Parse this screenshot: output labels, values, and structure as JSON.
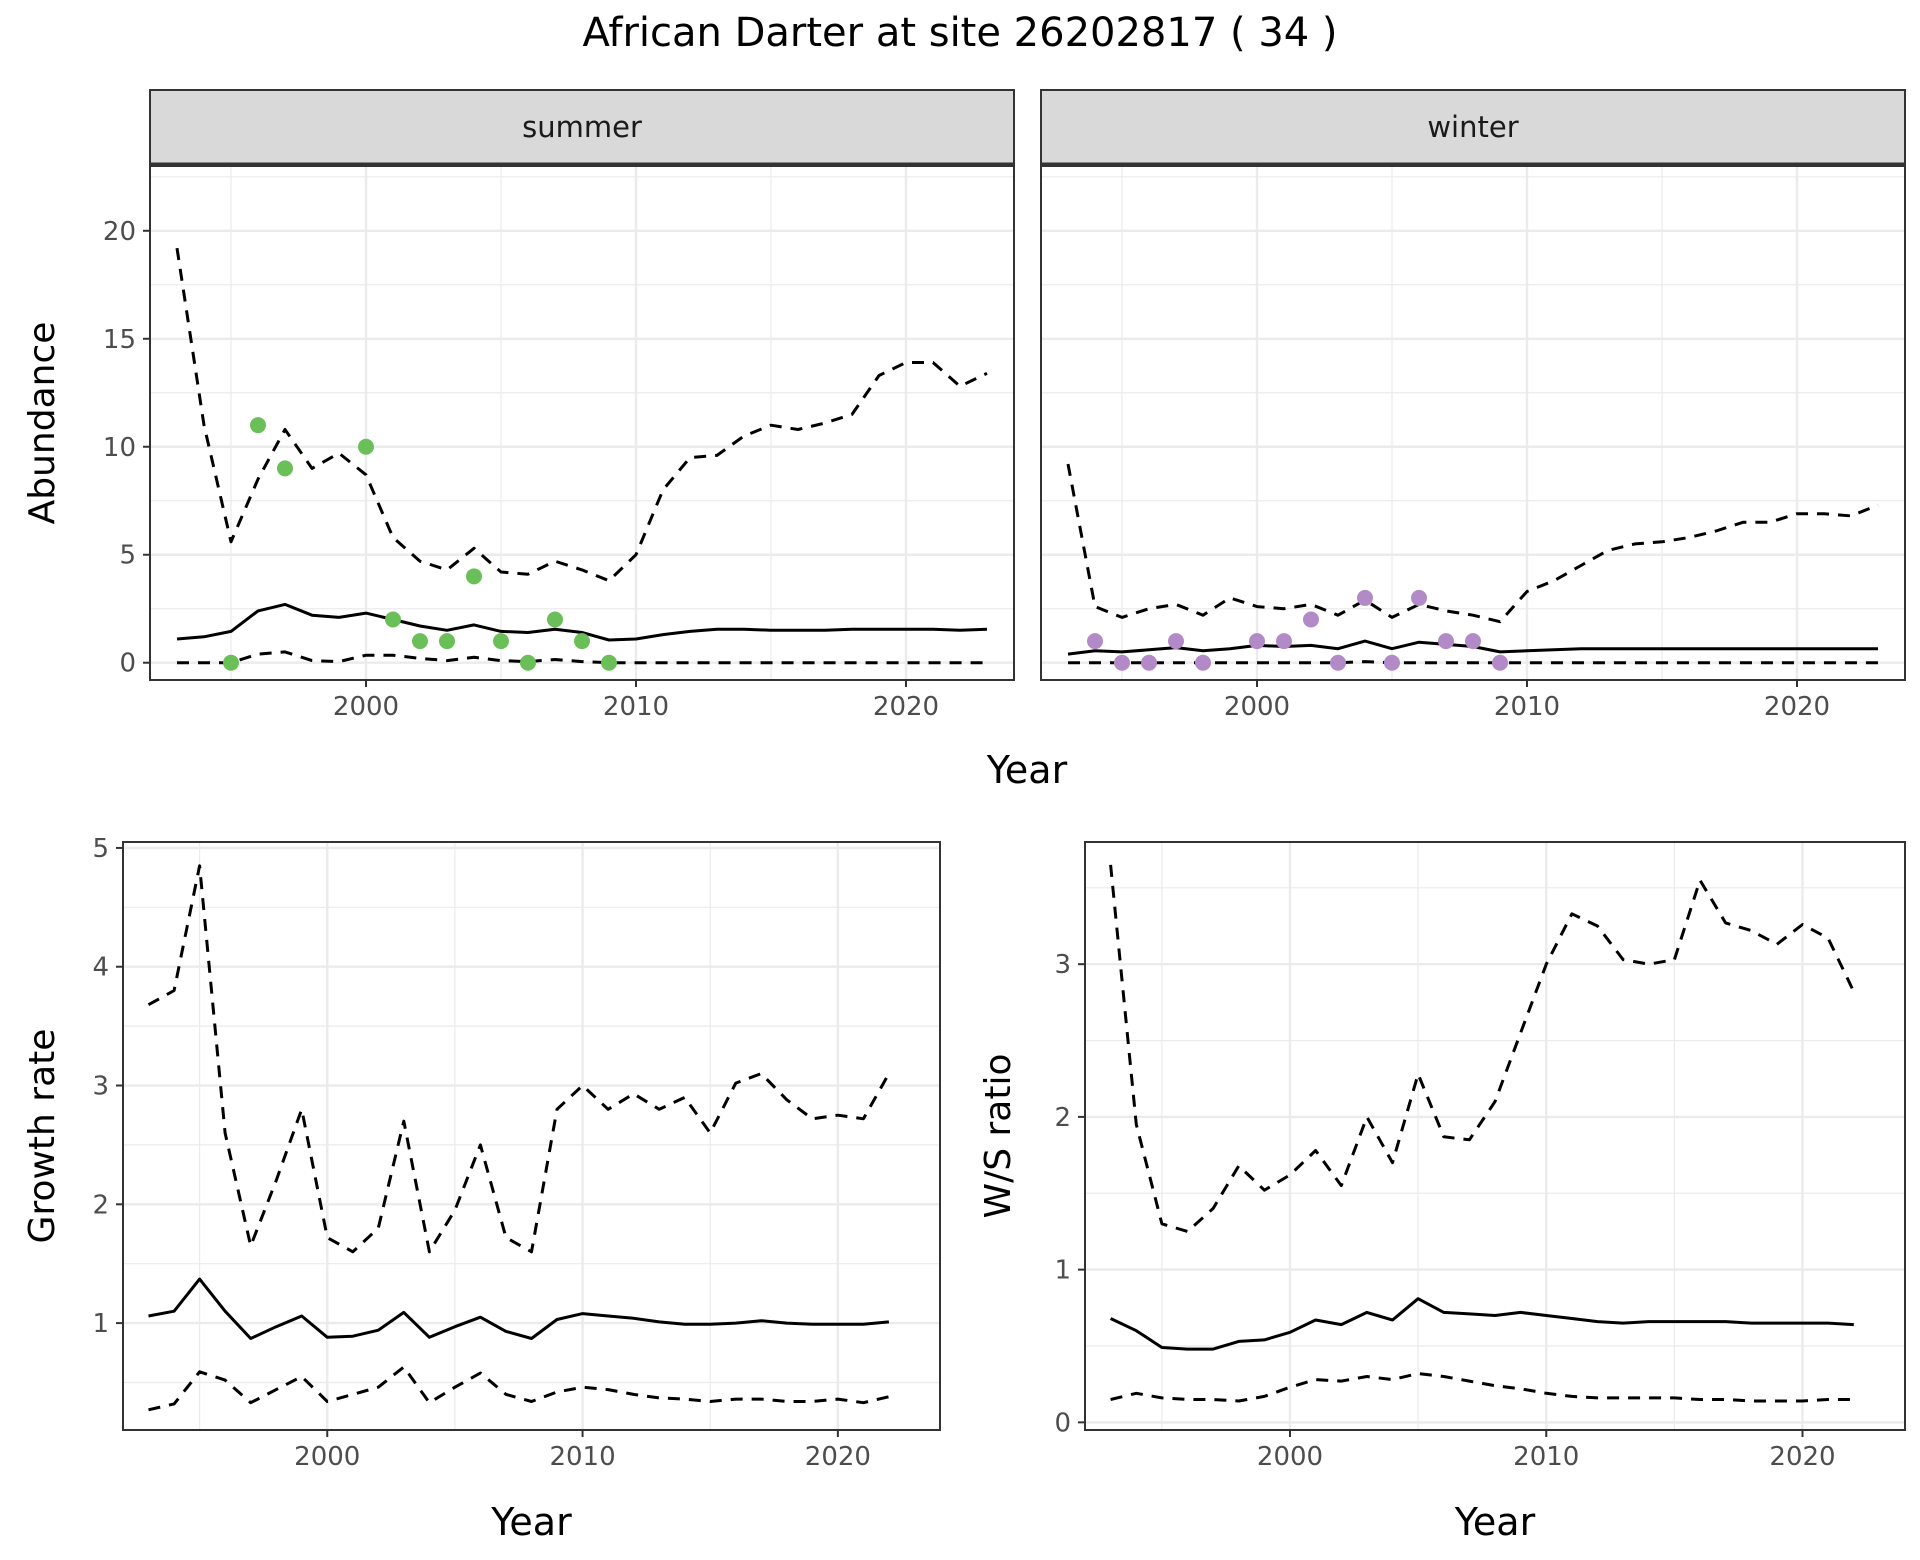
{
  "title": "African Darter at site 26202817 ( 34 )",
  "colors": {
    "summer_points": "#6abf59",
    "winter_points": "#b18ac7",
    "line": "#000000",
    "strip": "#d9d9d9",
    "grid": "#ebebeb"
  },
  "chart_data": [
    {
      "type": "line",
      "name": "abundance-summer",
      "facet": "summer",
      "xlabel": "Year",
      "ylabel": "Abundance",
      "xlim": [
        1992,
        2024
      ],
      "ylim": [
        -0.8,
        23
      ],
      "xticks": [
        2000,
        2010,
        2020
      ],
      "yticks": [
        0,
        5,
        10,
        15,
        20
      ],
      "grid": true,
      "series": [
        {
          "style": "solid",
          "x": [
            1993,
            1994,
            1995,
            1996,
            1997,
            1998,
            1999,
            2000,
            2001,
            2002,
            2003,
            2004,
            2005,
            2006,
            2007,
            2008,
            2009,
            2010,
            2011,
            2012,
            2013,
            2014,
            2015,
            2016,
            2017,
            2018,
            2019,
            2020,
            2021,
            2022,
            2023
          ],
          "y": [
            1.1,
            1.2,
            1.45,
            2.4,
            2.7,
            2.2,
            2.1,
            2.3,
            2.0,
            1.7,
            1.5,
            1.75,
            1.45,
            1.4,
            1.55,
            1.4,
            1.05,
            1.1,
            1.3,
            1.45,
            1.55,
            1.55,
            1.5,
            1.5,
            1.5,
            1.55,
            1.55,
            1.55,
            1.55,
            1.5,
            1.55
          ]
        },
        {
          "style": "dashed",
          "x": [
            1993,
            1994,
            1995,
            1996,
            1997,
            1998,
            1999,
            2000,
            2001,
            2002,
            2003,
            2004,
            2005,
            2006,
            2007,
            2008,
            2009,
            2010,
            2011,
            2012,
            2013,
            2014,
            2015,
            2016,
            2017,
            2018,
            2019,
            2020,
            2021,
            2022,
            2023
          ],
          "y": [
            19.2,
            11.0,
            5.6,
            8.5,
            10.8,
            9.0,
            9.7,
            8.7,
            5.8,
            4.7,
            4.3,
            5.3,
            4.2,
            4.1,
            4.7,
            4.3,
            3.8,
            5.0,
            8.0,
            9.5,
            9.6,
            10.5,
            11.0,
            10.8,
            11.1,
            11.5,
            13.3,
            13.9,
            13.9,
            12.8,
            13.4
          ]
        },
        {
          "style": "dashed",
          "x": [
            1993,
            1994,
            1995,
            1996,
            1997,
            1998,
            1999,
            2000,
            2001,
            2002,
            2003,
            2004,
            2005,
            2006,
            2007,
            2008,
            2009,
            2010,
            2011,
            2012,
            2013,
            2014,
            2015,
            2016,
            2017,
            2018,
            2019,
            2020,
            2021,
            2022,
            2023
          ],
          "y": [
            0,
            0,
            0,
            0.4,
            0.5,
            0.1,
            0.05,
            0.35,
            0.35,
            0.2,
            0.1,
            0.25,
            0.1,
            0.05,
            0.15,
            0.05,
            0,
            0,
            0,
            0,
            0,
            0,
            0,
            0,
            0,
            0,
            0,
            0,
            0,
            0,
            0
          ]
        }
      ],
      "points": {
        "x": [
          1995,
          1996,
          1997,
          2000,
          2001,
          2002,
          2003,
          2004,
          2005,
          2006,
          2007,
          2008,
          2009
        ],
        "y": [
          0,
          11,
          9,
          10,
          2,
          1,
          1,
          4,
          1,
          0,
          2,
          1,
          0
        ]
      }
    },
    {
      "type": "line",
      "name": "abundance-winter",
      "facet": "winter",
      "xlabel": "Year",
      "xlim": [
        1992,
        2024
      ],
      "ylim": [
        -0.8,
        23
      ],
      "xticks": [
        2000,
        2010,
        2020
      ],
      "yticks": [
        0,
        5,
        10,
        15,
        20
      ],
      "grid": true,
      "series": [
        {
          "style": "solid",
          "x": [
            1993,
            1994,
            1995,
            1996,
            1997,
            1998,
            1999,
            2000,
            2001,
            2002,
            2003,
            2004,
            2005,
            2006,
            2007,
            2008,
            2009,
            2010,
            2011,
            2012,
            2013,
            2014,
            2015,
            2016,
            2017,
            2018,
            2019,
            2020,
            2021,
            2022,
            2023
          ],
          "y": [
            0.4,
            0.55,
            0.5,
            0.6,
            0.7,
            0.55,
            0.65,
            0.8,
            0.75,
            0.8,
            0.65,
            1.0,
            0.65,
            0.95,
            0.85,
            0.75,
            0.5,
            0.55,
            0.6,
            0.65,
            0.65,
            0.65,
            0.65,
            0.65,
            0.65,
            0.65,
            0.65,
            0.65,
            0.65,
            0.65,
            0.65
          ]
        },
        {
          "style": "dashed",
          "x": [
            1993,
            1994,
            1995,
            1996,
            1997,
            1998,
            1999,
            2000,
            2001,
            2002,
            2003,
            2004,
            2005,
            2006,
            2007,
            2008,
            2009,
            2010,
            2011,
            2012,
            2013,
            2014,
            2015,
            2016,
            2017,
            2018,
            2019,
            2020,
            2021,
            2022,
            2023
          ],
          "y": [
            9.2,
            2.6,
            2.1,
            2.5,
            2.7,
            2.2,
            3.0,
            2.6,
            2.5,
            2.7,
            2.2,
            2.9,
            2.1,
            2.7,
            2.4,
            2.2,
            1.9,
            3.3,
            3.8,
            4.5,
            5.2,
            5.5,
            5.6,
            5.8,
            6.1,
            6.5,
            6.5,
            6.9,
            6.9,
            6.8,
            7.3
          ]
        },
        {
          "style": "dashed",
          "x": [
            1993,
            1994,
            1995,
            1996,
            1997,
            1998,
            1999,
            2000,
            2001,
            2002,
            2003,
            2004,
            2005,
            2006,
            2007,
            2008,
            2009,
            2010,
            2011,
            2012,
            2013,
            2014,
            2015,
            2016,
            2017,
            2018,
            2019,
            2020,
            2021,
            2022,
            2023
          ],
          "y": [
            0,
            0,
            0,
            0,
            0,
            0,
            0,
            0,
            0,
            0,
            0,
            0.05,
            0,
            0,
            0,
            0,
            0,
            0,
            0,
            0,
            0,
            0,
            0,
            0,
            0,
            0,
            0,
            0,
            0,
            0,
            0
          ]
        }
      ],
      "points": {
        "x": [
          1994,
          1995,
          1996,
          1997,
          1998,
          2000,
          2001,
          2002,
          2003,
          2004,
          2005,
          2006,
          2007,
          2008,
          2009
        ],
        "y": [
          1,
          0,
          0,
          1,
          0,
          1,
          1,
          2,
          0,
          3,
          0,
          3,
          1,
          1,
          0
        ]
      }
    },
    {
      "type": "line",
      "name": "growth-rate",
      "xlabel": "Year",
      "ylabel": "Growth rate",
      "xlim": [
        1992,
        2024
      ],
      "ylim": [
        0.1,
        5.05
      ],
      "xticks": [
        2000,
        2010,
        2020
      ],
      "yticks": [
        1,
        2,
        3,
        4,
        5
      ],
      "grid": true,
      "series": [
        {
          "style": "solid",
          "x": [
            1993,
            1994,
            1995,
            1996,
            1997,
            1998,
            1999,
            2000,
            2001,
            2002,
            2003,
            2004,
            2005,
            2006,
            2007,
            2008,
            2009,
            2010,
            2011,
            2012,
            2013,
            2014,
            2015,
            2016,
            2017,
            2018,
            2019,
            2020,
            2021,
            2022
          ],
          "y": [
            1.06,
            1.1,
            1.37,
            1.1,
            0.87,
            0.97,
            1.06,
            0.88,
            0.89,
            0.94,
            1.09,
            0.88,
            0.97,
            1.05,
            0.93,
            0.87,
            1.03,
            1.08,
            1.06,
            1.04,
            1.01,
            0.99,
            0.99,
            1.0,
            1.02,
            1.0,
            0.99,
            0.99,
            0.99,
            1.01
          ]
        },
        {
          "style": "dashed",
          "x": [
            1993,
            1994,
            1995,
            1996,
            1997,
            1998,
            1999,
            2000,
            2001,
            2002,
            2003,
            2004,
            2005,
            2006,
            2007,
            2008,
            2009,
            2010,
            2011,
            2012,
            2013,
            2014,
            2015,
            2016,
            2017,
            2018,
            2019,
            2020,
            2021,
            2022
          ],
          "y": [
            3.68,
            3.8,
            4.85,
            2.6,
            1.65,
            2.2,
            2.8,
            1.72,
            1.6,
            1.8,
            2.7,
            1.6,
            1.95,
            2.5,
            1.72,
            1.6,
            2.8,
            3.0,
            2.8,
            2.93,
            2.8,
            2.9,
            2.6,
            3.02,
            3.1,
            2.88,
            2.72,
            2.75,
            2.72,
            3.1
          ]
        },
        {
          "style": "dashed",
          "x": [
            1993,
            1994,
            1995,
            1996,
            1997,
            1998,
            1999,
            2000,
            2001,
            2002,
            2003,
            2004,
            2005,
            2006,
            2007,
            2008,
            2009,
            2010,
            2011,
            2012,
            2013,
            2014,
            2015,
            2016,
            2017,
            2018,
            2019,
            2020,
            2021,
            2022
          ],
          "y": [
            0.27,
            0.32,
            0.59,
            0.52,
            0.33,
            0.44,
            0.55,
            0.34,
            0.4,
            0.46,
            0.63,
            0.33,
            0.46,
            0.58,
            0.4,
            0.34,
            0.42,
            0.46,
            0.44,
            0.4,
            0.37,
            0.36,
            0.34,
            0.36,
            0.36,
            0.34,
            0.34,
            0.36,
            0.33,
            0.38
          ]
        }
      ]
    },
    {
      "type": "line",
      "name": "ws-ratio",
      "xlabel": "Year",
      "ylabel": "W/S ratio",
      "xlim": [
        1992,
        2024
      ],
      "ylim": [
        -0.05,
        3.8
      ],
      "xticks": [
        2000,
        2010,
        2020
      ],
      "yticks": [
        0,
        1,
        2,
        3
      ],
      "grid": true,
      "series": [
        {
          "style": "solid",
          "x": [
            1993,
            1994,
            1995,
            1996,
            1997,
            1998,
            1999,
            2000,
            2001,
            2002,
            2003,
            2004,
            2005,
            2006,
            2007,
            2008,
            2009,
            2010,
            2011,
            2012,
            2013,
            2014,
            2015,
            2016,
            2017,
            2018,
            2019,
            2020,
            2021,
            2022
          ],
          "y": [
            0.68,
            0.6,
            0.49,
            0.48,
            0.48,
            0.53,
            0.54,
            0.59,
            0.67,
            0.64,
            0.72,
            0.67,
            0.81,
            0.72,
            0.71,
            0.7,
            0.72,
            0.7,
            0.68,
            0.66,
            0.65,
            0.66,
            0.66,
            0.66,
            0.66,
            0.65,
            0.65,
            0.65,
            0.65,
            0.64
          ]
        },
        {
          "style": "dashed",
          "x": [
            1993,
            1994,
            1995,
            1996,
            1997,
            1998,
            1999,
            2000,
            2001,
            2002,
            2003,
            2004,
            2005,
            2006,
            2007,
            2008,
            2009,
            2010,
            2011,
            2012,
            2013,
            2014,
            2015,
            2016,
            2017,
            2018,
            2019,
            2020,
            2021,
            2022
          ],
          "y": [
            3.65,
            1.95,
            1.3,
            1.25,
            1.4,
            1.68,
            1.52,
            1.62,
            1.78,
            1.55,
            2.0,
            1.7,
            2.28,
            1.87,
            1.85,
            2.1,
            2.55,
            3.0,
            3.33,
            3.25,
            3.03,
            3.0,
            3.03,
            3.55,
            3.27,
            3.22,
            3.13,
            3.26,
            3.17,
            2.82
          ]
        },
        {
          "style": "dashed",
          "x": [
            1993,
            1994,
            1995,
            1996,
            1997,
            1998,
            1999,
            2000,
            2001,
            2002,
            2003,
            2004,
            2005,
            2006,
            2007,
            2008,
            2009,
            2010,
            2011,
            2012,
            2013,
            2014,
            2015,
            2016,
            2017,
            2018,
            2019,
            2020,
            2021,
            2022
          ],
          "y": [
            0.15,
            0.19,
            0.16,
            0.15,
            0.15,
            0.14,
            0.17,
            0.23,
            0.28,
            0.27,
            0.3,
            0.28,
            0.32,
            0.3,
            0.27,
            0.24,
            0.22,
            0.19,
            0.17,
            0.16,
            0.16,
            0.16,
            0.16,
            0.15,
            0.15,
            0.14,
            0.14,
            0.14,
            0.15,
            0.15
          ]
        }
      ]
    }
  ]
}
